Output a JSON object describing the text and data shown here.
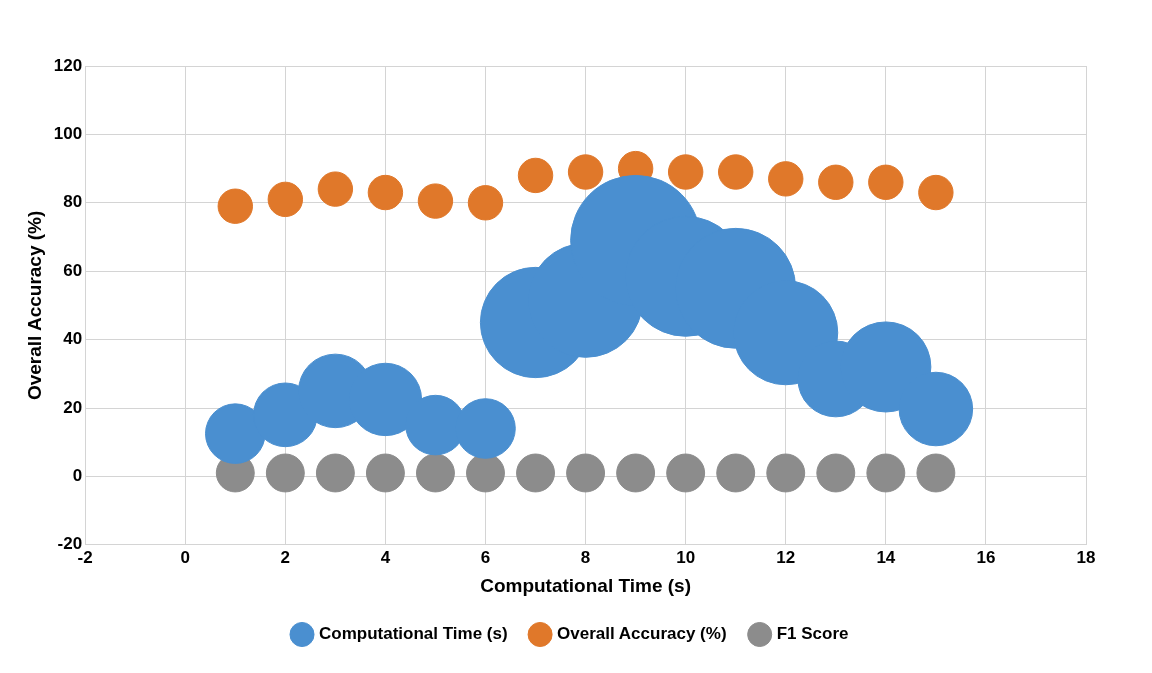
{
  "chart_data": {
    "type": "bubble",
    "xlabel": "Computational Time (s)",
    "ylabel": "Overall Accuracy (%)",
    "x": [
      1,
      2,
      3,
      4,
      5,
      6,
      7,
      8,
      9,
      10,
      11,
      12,
      13,
      14,
      15
    ],
    "series": [
      {
        "name": "Computational Time (s)",
        "color": "#4a8fd0",
        "values": [
          12.5,
          18,
          25,
          22.5,
          15,
          14,
          45,
          51.5,
          69,
          58.5,
          55,
          42,
          28.5,
          32,
          19.7
        ],
        "sizes": [
          0.21,
          0.24,
          0.32,
          0.31,
          0.21,
          0.21,
          0.72,
          0.77,
          1,
          0.85,
          0.85,
          0.64,
          0.34,
          0.48,
          0.32
        ]
      },
      {
        "name": "Overall Accuracy (%)",
        "color": "#e0782a",
        "values": [
          79,
          81,
          84,
          83,
          80.5,
          80,
          88,
          89,
          90,
          89,
          89,
          87,
          86,
          86,
          83
        ],
        "sizes": [
          0.07,
          0.07,
          0.07,
          0.07,
          0.07,
          0.07,
          0.07,
          0.07,
          0.07,
          0.07,
          0.07,
          0.07,
          0.07,
          0.07,
          0.07
        ]
      },
      {
        "name": "F1 Score",
        "color": "#8c8c8c",
        "values": [
          1,
          1,
          1,
          1,
          1,
          1,
          1,
          1,
          1,
          1,
          1,
          1,
          1,
          1,
          1
        ],
        "sizes": [
          0.085,
          0.085,
          0.085,
          0.085,
          0.085,
          0.085,
          0.085,
          0.085,
          0.085,
          0.085,
          0.085,
          0.085,
          0.085,
          0.085,
          0.085
        ]
      }
    ],
    "xlim": [
      -2,
      18
    ],
    "xticks": [
      -2,
      0,
      2,
      4,
      6,
      8,
      10,
      12,
      14,
      16,
      18
    ],
    "ylim": [
      -20,
      120
    ],
    "yticks": [
      -20,
      0,
      20,
      40,
      60,
      80,
      100,
      120
    ],
    "grid": true,
    "legend": "bottom"
  }
}
